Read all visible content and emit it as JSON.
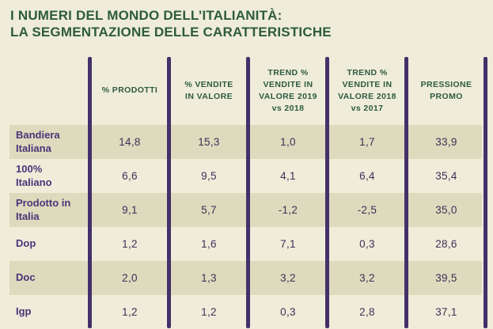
{
  "title": {
    "line1": "I NUMERI DEL MONDO DELL’ITALIANITÀ:",
    "line2": "LA SEGMENTAZIONE DELLE CARATTERISTICHE"
  },
  "colors": {
    "background": "#efecda",
    "stripe": "#dedabd",
    "title_green": "#2d5b3d",
    "header_green": "#2e5a3f",
    "row_label_purple": "#4b3478",
    "value_text": "#3e2f56",
    "divider_purple": "#44306a"
  },
  "chart_data": {
    "type": "table",
    "title": "I NUMERI DEL MONDO DELL’ITALIANITÀ: LA SEGMENTAZIONE DELLE CARATTERISTICHE",
    "columns": [
      "% PRODOTTI",
      "% VENDITE IN VALORE",
      "TREND % VENDITE IN VALORE 2019 vs 2018",
      "TREND % VENDITE IN VALORE 2018 vs 2017",
      "PRESSIONE PROMO"
    ],
    "columns_display": [
      "% PRODOTTI",
      "% VENDITE\nIN VALORE",
      "TREND %\nVENDITE IN\nVALORE 2019\nvs 2018",
      "TREND %\nVENDITE IN\nVALORE 2018\nvs 2017",
      "PRESSIONE\nPROMO"
    ],
    "rows": [
      {
        "label": "Bandiera Italiana",
        "values": [
          "14,8",
          "15,3",
          "1,0",
          "1,7",
          "33,9"
        ]
      },
      {
        "label": "100% Italiano",
        "values": [
          "6,6",
          "9,5",
          "4,1",
          "6,4",
          "35,4"
        ]
      },
      {
        "label": "Prodotto in Italia",
        "values": [
          "9,1",
          "5,7",
          "-1,2",
          "-2,5",
          "35,0"
        ]
      },
      {
        "label": "Dop",
        "values": [
          "1,2",
          "1,6",
          "7,1",
          "0,3",
          "28,6"
        ]
      },
      {
        "label": "Doc",
        "values": [
          "2,0",
          "1,3",
          "3,2",
          "3,2",
          "39,5"
        ]
      },
      {
        "label": "Igp",
        "values": [
          "1,2",
          "1,2",
          "0,3",
          "2,8",
          "37,1"
        ]
      }
    ]
  }
}
